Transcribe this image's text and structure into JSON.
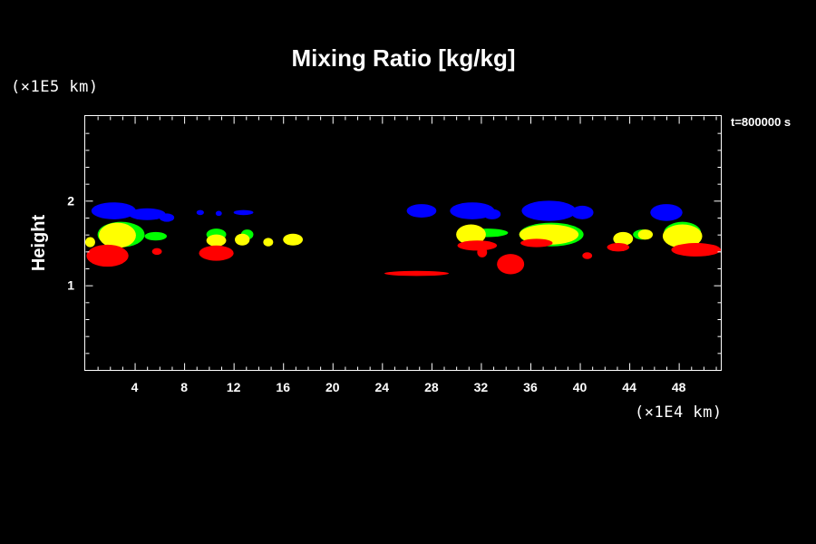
{
  "chart_data": {
    "type": "heatmap",
    "title": "Mixing Ratio [kg/kg]",
    "xlabel": "",
    "ylabel": "Height",
    "x_scale_label": "(×1E4 km)",
    "y_scale_label": "(×1E5 km)",
    "time_label": "t=800000 s",
    "xlim": [
      0,
      51.4
    ],
    "ylim": [
      0,
      3.0
    ],
    "x_ticks": [
      4,
      8,
      12,
      16,
      20,
      24,
      28,
      32,
      36,
      40,
      44,
      48
    ],
    "y_ticks": [
      1,
      2
    ],
    "colors": {
      "blue": "#0000ff",
      "green": "#00ff00",
      "yellow": "#ffff00",
      "red": "#ff0000"
    },
    "regions": [
      {
        "color": "blue",
        "cx": 2.3,
        "cy": 1.88,
        "rx": 1.8,
        "ry": 0.1
      },
      {
        "color": "blue",
        "cx": 5.0,
        "cy": 1.84,
        "rx": 1.5,
        "ry": 0.07
      },
      {
        "color": "blue",
        "cx": 6.6,
        "cy": 1.8,
        "rx": 0.6,
        "ry": 0.05
      },
      {
        "color": "blue",
        "cx": 9.3,
        "cy": 1.86,
        "rx": 0.3,
        "ry": 0.03
      },
      {
        "color": "blue",
        "cx": 10.8,
        "cy": 1.85,
        "rx": 0.25,
        "ry": 0.03
      },
      {
        "color": "blue",
        "cx": 12.8,
        "cy": 1.86,
        "rx": 0.8,
        "ry": 0.03
      },
      {
        "color": "blue",
        "cx": 27.2,
        "cy": 1.88,
        "rx": 1.2,
        "ry": 0.08
      },
      {
        "color": "blue",
        "cx": 31.3,
        "cy": 1.88,
        "rx": 1.8,
        "ry": 0.1
      },
      {
        "color": "blue",
        "cx": 32.9,
        "cy": 1.84,
        "rx": 0.7,
        "ry": 0.06
      },
      {
        "color": "blue",
        "cx": 37.5,
        "cy": 1.88,
        "rx": 2.2,
        "ry": 0.12
      },
      {
        "color": "blue",
        "cx": 40.2,
        "cy": 1.86,
        "rx": 0.9,
        "ry": 0.08
      },
      {
        "color": "blue",
        "cx": 47.0,
        "cy": 1.86,
        "rx": 1.3,
        "ry": 0.1
      },
      {
        "color": "green",
        "cx": 2.9,
        "cy": 1.6,
        "rx": 1.9,
        "ry": 0.15
      },
      {
        "color": "green",
        "cx": 5.7,
        "cy": 1.58,
        "rx": 0.9,
        "ry": 0.05
      },
      {
        "color": "green",
        "cx": 10.6,
        "cy": 1.6,
        "rx": 0.8,
        "ry": 0.07
      },
      {
        "color": "green",
        "cx": 13.1,
        "cy": 1.6,
        "rx": 0.5,
        "ry": 0.06
      },
      {
        "color": "green",
        "cx": 32.5,
        "cy": 1.62,
        "rx": 1.7,
        "ry": 0.05
      },
      {
        "color": "green",
        "cx": 37.7,
        "cy": 1.6,
        "rx": 2.6,
        "ry": 0.14
      },
      {
        "color": "green",
        "cx": 45.1,
        "cy": 1.6,
        "rx": 0.8,
        "ry": 0.06
      },
      {
        "color": "green",
        "cx": 48.3,
        "cy": 1.62,
        "rx": 1.5,
        "ry": 0.13
      },
      {
        "color": "yellow",
        "cx": 2.6,
        "cy": 1.59,
        "rx": 1.5,
        "ry": 0.15
      },
      {
        "color": "yellow",
        "cx": 0.4,
        "cy": 1.51,
        "rx": 0.4,
        "ry": 0.06
      },
      {
        "color": "yellow",
        "cx": 10.6,
        "cy": 1.53,
        "rx": 0.8,
        "ry": 0.07
      },
      {
        "color": "yellow",
        "cx": 12.7,
        "cy": 1.54,
        "rx": 0.6,
        "ry": 0.07
      },
      {
        "color": "yellow",
        "cx": 14.8,
        "cy": 1.51,
        "rx": 0.4,
        "ry": 0.05
      },
      {
        "color": "yellow",
        "cx": 16.8,
        "cy": 1.54,
        "rx": 0.8,
        "ry": 0.07
      },
      {
        "color": "yellow",
        "cx": 31.2,
        "cy": 1.6,
        "rx": 1.2,
        "ry": 0.12
      },
      {
        "color": "yellow",
        "cx": 37.5,
        "cy": 1.6,
        "rx": 2.4,
        "ry": 0.12
      },
      {
        "color": "yellow",
        "cx": 43.5,
        "cy": 1.55,
        "rx": 0.8,
        "ry": 0.08
      },
      {
        "color": "yellow",
        "cx": 45.3,
        "cy": 1.6,
        "rx": 0.6,
        "ry": 0.06
      },
      {
        "color": "yellow",
        "cx": 48.3,
        "cy": 1.58,
        "rx": 1.6,
        "ry": 0.14
      },
      {
        "color": "red",
        "cx": 1.8,
        "cy": 1.35,
        "rx": 1.7,
        "ry": 0.13
      },
      {
        "color": "red",
        "cx": 5.8,
        "cy": 1.4,
        "rx": 0.4,
        "ry": 0.04
      },
      {
        "color": "red",
        "cx": 10.6,
        "cy": 1.38,
        "rx": 1.4,
        "ry": 0.09
      },
      {
        "color": "red",
        "cx": 26.8,
        "cy": 1.14,
        "rx": 2.6,
        "ry": 0.03
      },
      {
        "color": "red",
        "cx": 31.7,
        "cy": 1.47,
        "rx": 1.6,
        "ry": 0.06
      },
      {
        "color": "red",
        "cx": 32.1,
        "cy": 1.39,
        "rx": 0.4,
        "ry": 0.06
      },
      {
        "color": "red",
        "cx": 34.4,
        "cy": 1.25,
        "rx": 1.1,
        "ry": 0.12
      },
      {
        "color": "red",
        "cx": 36.5,
        "cy": 1.5,
        "rx": 1.3,
        "ry": 0.05
      },
      {
        "color": "red",
        "cx": 40.6,
        "cy": 1.35,
        "rx": 0.4,
        "ry": 0.04
      },
      {
        "color": "red",
        "cx": 43.1,
        "cy": 1.45,
        "rx": 0.9,
        "ry": 0.05
      },
      {
        "color": "red",
        "cx": 49.4,
        "cy": 1.42,
        "rx": 2.0,
        "ry": 0.08
      }
    ]
  }
}
